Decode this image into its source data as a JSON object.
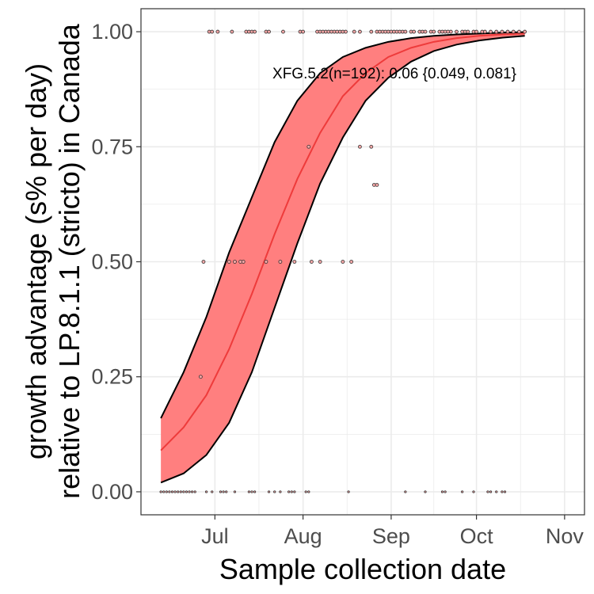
{
  "chart_data": {
    "type": "scatter",
    "xlabel": "Sample collection date",
    "ylabel_lines": [
      "growth advantage (s% per day)",
      "relative to LP.8.1.1 (stricto) in Canada"
    ],
    "annotation": "XFG.5.2(n=192): 0.06 {0.049, 0.081}",
    "x_ticks": [
      {
        "label": "Jul",
        "date": "2025-07-01"
      },
      {
        "label": "Aug",
        "date": "2025-08-01"
      },
      {
        "label": "Sep",
        "date": "2025-09-01"
      },
      {
        "label": "Oct",
        "date": "2025-10-01"
      },
      {
        "label": "Nov",
        "date": "2025-11-01"
      }
    ],
    "y_ticks": [
      "0.00",
      "0.25",
      "0.50",
      "0.75",
      "1.00"
    ],
    "xlim": [
      "2025-06-05",
      "2025-11-08"
    ],
    "ylim": [
      -0.05,
      1.05
    ],
    "grid": true,
    "fit": {
      "x": [
        "2025-06-12",
        "2025-06-20",
        "2025-06-28",
        "2025-07-06",
        "2025-07-14",
        "2025-07-22",
        "2025-07-30",
        "2025-08-07",
        "2025-08-15",
        "2025-08-23",
        "2025-08-31",
        "2025-09-08",
        "2025-09-16",
        "2025-09-24",
        "2025-10-02",
        "2025-10-10",
        "2025-10-18"
      ],
      "y": [
        0.09,
        0.14,
        0.21,
        0.31,
        0.43,
        0.56,
        0.68,
        0.78,
        0.86,
        0.91,
        0.945,
        0.965,
        0.978,
        0.986,
        0.991,
        0.994,
        0.996
      ],
      "lower": [
        0.02,
        0.04,
        0.08,
        0.15,
        0.26,
        0.4,
        0.54,
        0.67,
        0.77,
        0.85,
        0.9,
        0.935,
        0.958,
        0.972,
        0.981,
        0.987,
        0.991
      ],
      "upper": [
        0.16,
        0.26,
        0.38,
        0.52,
        0.64,
        0.76,
        0.85,
        0.91,
        0.945,
        0.965,
        0.978,
        0.986,
        0.991,
        0.994,
        0.996,
        0.998,
        0.999
      ]
    },
    "points": [
      {
        "x": "2025-06-12",
        "y": 0
      },
      {
        "x": "2025-06-13",
        "y": 0
      },
      {
        "x": "2025-06-14",
        "y": 0
      },
      {
        "x": "2025-06-15",
        "y": 0
      },
      {
        "x": "2025-06-16",
        "y": 0
      },
      {
        "x": "2025-06-17",
        "y": 0
      },
      {
        "x": "2025-06-18",
        "y": 0
      },
      {
        "x": "2025-06-19",
        "y": 0
      },
      {
        "x": "2025-06-20",
        "y": 0
      },
      {
        "x": "2025-06-21",
        "y": 0
      },
      {
        "x": "2025-06-22",
        "y": 0
      },
      {
        "x": "2025-06-23",
        "y": 0
      },
      {
        "x": "2025-06-24",
        "y": 0
      },
      {
        "x": "2025-06-28",
        "y": 0
      },
      {
        "x": "2025-06-30",
        "y": 0
      },
      {
        "x": "2025-07-03",
        "y": 0
      },
      {
        "x": "2025-07-04",
        "y": 0
      },
      {
        "x": "2025-07-05",
        "y": 0
      },
      {
        "x": "2025-07-08",
        "y": 0
      },
      {
        "x": "2025-07-13",
        "y": 0
      },
      {
        "x": "2025-07-14",
        "y": 0
      },
      {
        "x": "2025-07-15",
        "y": 0
      },
      {
        "x": "2025-07-20",
        "y": 0
      },
      {
        "x": "2025-07-22",
        "y": 0
      },
      {
        "x": "2025-07-24",
        "y": 0
      },
      {
        "x": "2025-07-27",
        "y": 0
      },
      {
        "x": "2025-07-28",
        "y": 0
      },
      {
        "x": "2025-07-29",
        "y": 0
      },
      {
        "x": "2025-08-02",
        "y": 0
      },
      {
        "x": "2025-08-03",
        "y": 0
      },
      {
        "x": "2025-08-17",
        "y": 0
      },
      {
        "x": "2025-09-06",
        "y": 0
      },
      {
        "x": "2025-09-13",
        "y": 0
      },
      {
        "x": "2025-09-19",
        "y": 0
      },
      {
        "x": "2025-09-20",
        "y": 0
      },
      {
        "x": "2025-09-26",
        "y": 0
      },
      {
        "x": "2025-09-30",
        "y": 0
      },
      {
        "x": "2025-10-05",
        "y": 0
      },
      {
        "x": "2025-10-06",
        "y": 0
      },
      {
        "x": "2025-10-08",
        "y": 0
      },
      {
        "x": "2025-10-10",
        "y": 0
      },
      {
        "x": "2025-10-11",
        "y": 0
      },
      {
        "x": "2025-06-26",
        "y": 0.25
      },
      {
        "x": "2025-06-27",
        "y": 0.5
      },
      {
        "x": "2025-07-06",
        "y": 0.5
      },
      {
        "x": "2025-07-08",
        "y": 0.5
      },
      {
        "x": "2025-07-10",
        "y": 0.5
      },
      {
        "x": "2025-07-11",
        "y": 0.5
      },
      {
        "x": "2025-07-19",
        "y": 0.5
      },
      {
        "x": "2025-07-24",
        "y": 0.5
      },
      {
        "x": "2025-07-29",
        "y": 0.5
      },
      {
        "x": "2025-08-04",
        "y": 0.5
      },
      {
        "x": "2025-08-07",
        "y": 0.5
      },
      {
        "x": "2025-08-15",
        "y": 0.5
      },
      {
        "x": "2025-08-18",
        "y": 0.5
      },
      {
        "x": "2025-08-03",
        "y": 0.75
      },
      {
        "x": "2025-08-21",
        "y": 0.75
      },
      {
        "x": "2025-08-25",
        "y": 0.75
      },
      {
        "x": "2025-08-26",
        "y": 0.667
      },
      {
        "x": "2025-08-27",
        "y": 0.667
      },
      {
        "x": "2025-06-29",
        "y": 1
      },
      {
        "x": "2025-06-30",
        "y": 1
      },
      {
        "x": "2025-07-02",
        "y": 1
      },
      {
        "x": "2025-07-07",
        "y": 1
      },
      {
        "x": "2025-07-12",
        "y": 1
      },
      {
        "x": "2025-07-13",
        "y": 1
      },
      {
        "x": "2025-07-14",
        "y": 1
      },
      {
        "x": "2025-07-15",
        "y": 1
      },
      {
        "x": "2025-07-19",
        "y": 1
      },
      {
        "x": "2025-07-20",
        "y": 1
      },
      {
        "x": "2025-07-25",
        "y": 1
      },
      {
        "x": "2025-07-31",
        "y": 1
      },
      {
        "x": "2025-08-01",
        "y": 1
      },
      {
        "x": "2025-08-06",
        "y": 1
      },
      {
        "x": "2025-08-07",
        "y": 1
      },
      {
        "x": "2025-08-08",
        "y": 1
      },
      {
        "x": "2025-08-09",
        "y": 1
      },
      {
        "x": "2025-08-10",
        "y": 1
      },
      {
        "x": "2025-08-11",
        "y": 1
      },
      {
        "x": "2025-08-12",
        "y": 1
      },
      {
        "x": "2025-08-13",
        "y": 1
      },
      {
        "x": "2025-08-14",
        "y": 1
      },
      {
        "x": "2025-08-15",
        "y": 1
      },
      {
        "x": "2025-08-16",
        "y": 1
      },
      {
        "x": "2025-08-19",
        "y": 1
      },
      {
        "x": "2025-08-21",
        "y": 1
      },
      {
        "x": "2025-08-25",
        "y": 1
      },
      {
        "x": "2025-08-27",
        "y": 1
      },
      {
        "x": "2025-08-28",
        "y": 1
      },
      {
        "x": "2025-08-29",
        "y": 1
      },
      {
        "x": "2025-08-30",
        "y": 1
      },
      {
        "x": "2025-08-31",
        "y": 1
      },
      {
        "x": "2025-09-01",
        "y": 1
      },
      {
        "x": "2025-09-02",
        "y": 1
      },
      {
        "x": "2025-09-03",
        "y": 1
      },
      {
        "x": "2025-09-04",
        "y": 1
      },
      {
        "x": "2025-09-05",
        "y": 1
      },
      {
        "x": "2025-09-06",
        "y": 1
      },
      {
        "x": "2025-09-08",
        "y": 1
      },
      {
        "x": "2025-09-09",
        "y": 1
      },
      {
        "x": "2025-09-11",
        "y": 1
      },
      {
        "x": "2025-09-12",
        "y": 1
      },
      {
        "x": "2025-09-13",
        "y": 1
      },
      {
        "x": "2025-09-15",
        "y": 1
      },
      {
        "x": "2025-09-16",
        "y": 1
      },
      {
        "x": "2025-09-18",
        "y": 1
      },
      {
        "x": "2025-09-19",
        "y": 1
      },
      {
        "x": "2025-09-20",
        "y": 1
      },
      {
        "x": "2025-09-21",
        "y": 1
      },
      {
        "x": "2025-09-22",
        "y": 1
      },
      {
        "x": "2025-09-24",
        "y": 1
      },
      {
        "x": "2025-09-26",
        "y": 1
      },
      {
        "x": "2025-09-27",
        "y": 1
      },
      {
        "x": "2025-09-28",
        "y": 1
      },
      {
        "x": "2025-09-30",
        "y": 1
      },
      {
        "x": "2025-10-01",
        "y": 1
      },
      {
        "x": "2025-10-03",
        "y": 1
      },
      {
        "x": "2025-10-04",
        "y": 1
      },
      {
        "x": "2025-10-06",
        "y": 1
      },
      {
        "x": "2025-10-08",
        "y": 1
      },
      {
        "x": "2025-10-10",
        "y": 1
      },
      {
        "x": "2025-10-12",
        "y": 1
      },
      {
        "x": "2025-10-14",
        "y": 1
      },
      {
        "x": "2025-10-16",
        "y": 1
      },
      {
        "x": "2025-10-18",
        "y": 1
      }
    ],
    "colors": {
      "ribbon_fill": "#ff7f7f",
      "ribbon_border": "#000000",
      "fit_line": "#ee3b3b",
      "point_fill": "#f4a6a6",
      "point_stroke": "#333333",
      "grid": "#ebebeb",
      "panel_border": "#333333"
    }
  }
}
